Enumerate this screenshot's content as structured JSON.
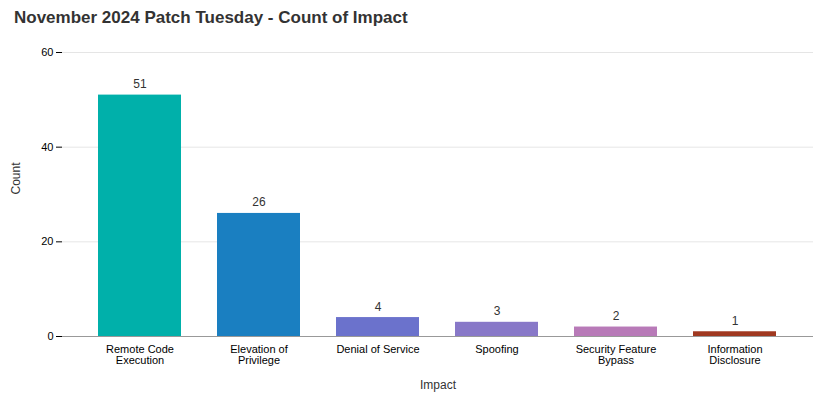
{
  "chart_data": {
    "type": "bar",
    "title": "November 2024 Patch Tuesday - Count of Impact",
    "xlabel": "Impact",
    "ylabel": "Count",
    "categories": [
      "Remote Code\nExecution",
      "Elevation of\nPrivilege",
      "Denial of Service",
      "Spoofing",
      "Security Feature\nBypass",
      "Information\nDisclosure"
    ],
    "values": [
      51,
      26,
      4,
      3,
      2,
      1
    ],
    "colors": [
      "#00b0aa",
      "#1a7fc1",
      "#6b72cc",
      "#8878c8",
      "#b87ab8",
      "#a03820"
    ],
    "ylim": [
      0,
      60
    ],
    "yticks": [
      0,
      20,
      40,
      60
    ],
    "grid": true,
    "data_labels": true
  }
}
